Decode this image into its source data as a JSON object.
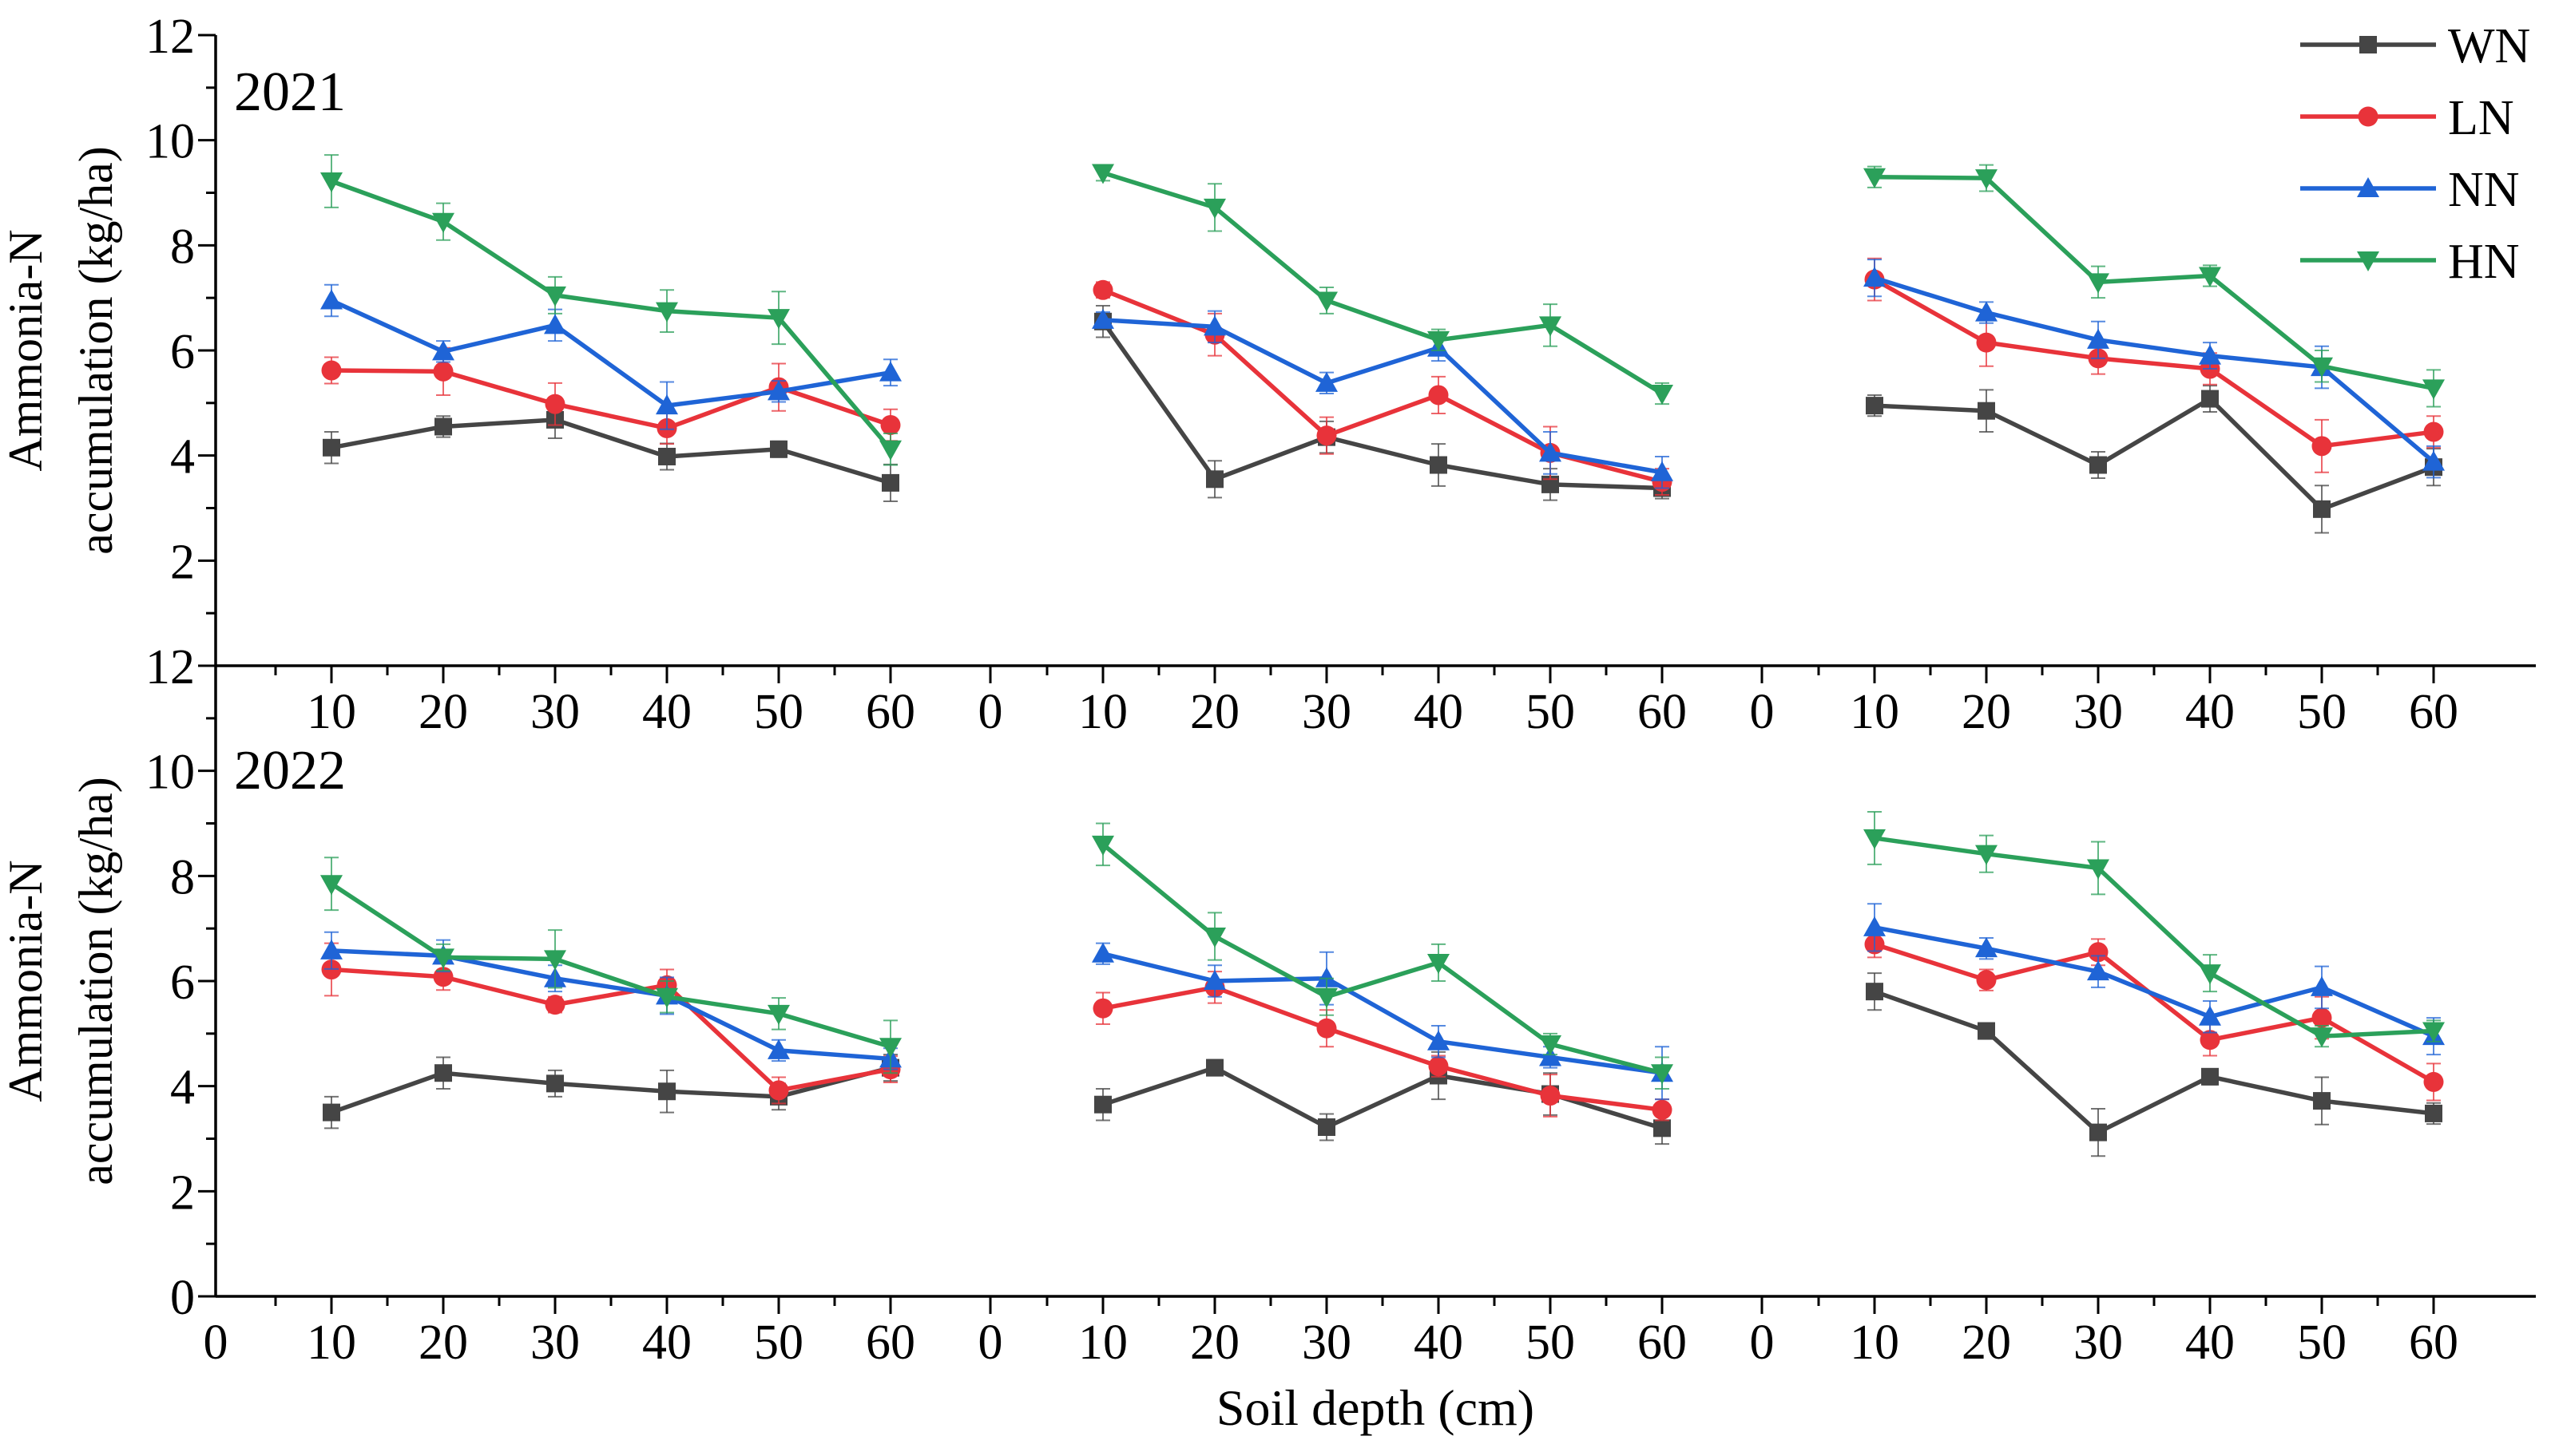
{
  "chart_data": {
    "type": "line",
    "xlabel": "Soil depth (cm)",
    "ylabel": "Ammonia-N accumulation (kg/ha)",
    "ylabel_lines": [
      "Ammonia-N",
      "accumulation (kg/ha)"
    ],
    "ylim": [
      0,
      12
    ],
    "y_ticks": [
      "0",
      "2",
      "4",
      "6",
      "8",
      "10",
      "12"
    ],
    "x_ticks": [
      "10",
      "20",
      "30",
      "40",
      "50",
      "60"
    ],
    "x_zero_label": "0",
    "depths": [
      10,
      20,
      30,
      40,
      50,
      60
    ],
    "legend": {
      "position": "top-right",
      "entries": [
        {
          "name": "WN",
          "color": "#454545",
          "marker": "square"
        },
        {
          "name": "LN",
          "color": "#e8333a",
          "marker": "circle"
        },
        {
          "name": "NN",
          "color": "#1f64d6",
          "marker": "triangle-up"
        },
        {
          "name": "HN",
          "color": "#2ba05a",
          "marker": "triangle-down"
        }
      ]
    },
    "panels": [
      {
        "year": "2021",
        "groups": [
          {
            "WN": {
              "values": [
                4.15,
                4.55,
                4.68,
                3.98,
                4.12,
                3.48
              ],
              "errors": [
                0.3,
                0.2,
                0.35,
                0.25,
                0.15,
                0.35
              ]
            },
            "LN": {
              "values": [
                5.62,
                5.6,
                4.98,
                4.52,
                5.3,
                4.58
              ],
              "errors": [
                0.25,
                0.45,
                0.4,
                0.3,
                0.45,
                0.3
              ]
            },
            "NN": {
              "values": [
                6.95,
                5.98,
                6.48,
                4.95,
                5.22,
                5.58
              ],
              "errors": [
                0.3,
                0.2,
                0.3,
                0.45,
                0.2,
                0.25
              ]
            },
            "HN": {
              "values": [
                9.22,
                8.45,
                7.05,
                6.75,
                6.62,
                4.12
              ],
              "errors": [
                0.5,
                0.35,
                0.35,
                0.4,
                0.5,
                0.3
              ]
            }
          },
          {
            "WN": {
              "values": [
                6.55,
                3.55,
                4.35,
                3.82,
                3.45,
                3.38
              ],
              "errors": [
                0.3,
                0.35,
                0.3,
                0.4,
                0.3,
                0.2
              ]
            },
            "LN": {
              "values": [
                7.15,
                6.3,
                4.38,
                5.15,
                4.05,
                3.5
              ],
              "errors": [
                0.15,
                0.4,
                0.35,
                0.35,
                0.5,
                0.25
              ]
            },
            "NN": {
              "values": [
                6.58,
                6.45,
                5.38,
                6.05,
                4.05,
                3.68
              ],
              "errors": [
                0.15,
                0.3,
                0.2,
                0.25,
                0.4,
                0.3
              ]
            },
            "HN": {
              "values": [
                9.38,
                8.72,
                6.95,
                6.2,
                6.48,
                5.18
              ],
              "errors": [
                0.15,
                0.45,
                0.25,
                0.2,
                0.4,
                0.2
              ]
            }
          },
          {
            "WN": {
              "values": [
                4.95,
                4.85,
                3.82,
                5.08,
                2.98,
                3.78
              ],
              "errors": [
                0.2,
                0.4,
                0.25,
                0.25,
                0.45,
                0.35
              ]
            },
            "LN": {
              "values": [
                7.35,
                6.15,
                5.85,
                5.65,
                4.18,
                4.45
              ],
              "errors": [
                0.4,
                0.45,
                0.3,
                0.3,
                0.5,
                0.3
              ]
            },
            "NN": {
              "values": [
                7.38,
                6.72,
                6.2,
                5.9,
                5.68,
                3.88
              ],
              "errors": [
                0.35,
                0.2,
                0.35,
                0.25,
                0.4,
                0.3
              ]
            },
            "HN": {
              "values": [
                9.3,
                9.28,
                7.3,
                7.42,
                5.7,
                5.28
              ],
              "errors": [
                0.2,
                0.25,
                0.3,
                0.2,
                0.3,
                0.35
              ]
            }
          }
        ]
      },
      {
        "year": "2022",
        "groups": [
          {
            "WN": {
              "values": [
                3.5,
                4.25,
                4.05,
                3.9,
                3.8,
                4.35
              ],
              "errors": [
                0.3,
                0.3,
                0.25,
                0.4,
                0.25,
                0.25
              ]
            },
            "LN": {
              "values": [
                6.22,
                6.08,
                5.55,
                5.92,
                3.92,
                4.32
              ],
              "errors": [
                0.5,
                0.25,
                0.15,
                0.3,
                0.25,
                0.25
              ]
            },
            "NN": {
              "values": [
                6.58,
                6.48,
                6.05,
                5.72,
                4.68,
                4.52
              ],
              "errors": [
                0.35,
                0.3,
                0.25,
                0.35,
                0.2,
                0.2
              ]
            },
            "HN": {
              "values": [
                7.85,
                6.45,
                6.42,
                5.7,
                5.38,
                4.75
              ],
              "errors": [
                0.5,
                0.25,
                0.55,
                0.3,
                0.3,
                0.5
              ]
            }
          },
          {
            "WN": {
              "values": [
                3.65,
                4.35,
                3.22,
                4.2,
                3.85,
                3.2
              ],
              "errors": [
                0.3,
                0.15,
                0.25,
                0.45,
                0.4,
                0.3
              ]
            },
            "LN": {
              "values": [
                5.48,
                5.88,
                5.1,
                4.38,
                3.82,
                3.55
              ],
              "errors": [
                0.3,
                0.3,
                0.35,
                0.2,
                0.4,
                0.2
              ]
            },
            "NN": {
              "values": [
                6.52,
                6.0,
                6.05,
                4.85,
                4.55,
                4.25
              ],
              "errors": [
                0.2,
                0.3,
                0.5,
                0.3,
                0.2,
                0.5
              ]
            },
            "HN": {
              "values": [
                8.6,
                6.85,
                5.7,
                6.35,
                4.8,
                4.25
              ],
              "errors": [
                0.4,
                0.45,
                0.35,
                0.35,
                0.2,
                0.3
              ]
            }
          },
          {
            "WN": {
              "values": [
                5.8,
                5.05,
                3.12,
                4.18,
                3.72,
                3.48
              ],
              "errors": [
                0.35,
                0.15,
                0.45,
                0.15,
                0.45,
                0.2
              ]
            },
            "LN": {
              "values": [
                6.7,
                6.02,
                6.55,
                4.88,
                5.3,
                4.08
              ],
              "errors": [
                0.25,
                0.2,
                0.25,
                0.3,
                0.4,
                0.35
              ]
            },
            "NN": {
              "values": [
                7.02,
                6.62,
                6.18,
                5.32,
                5.88,
                4.95
              ],
              "errors": [
                0.45,
                0.2,
                0.3,
                0.3,
                0.4,
                0.35
              ]
            },
            "HN": {
              "values": [
                8.72,
                8.42,
                8.15,
                6.15,
                4.95,
                5.05
              ],
              "errors": [
                0.5,
                0.35,
                0.5,
                0.35,
                0.2,
                0.2
              ]
            }
          }
        ]
      }
    ]
  }
}
